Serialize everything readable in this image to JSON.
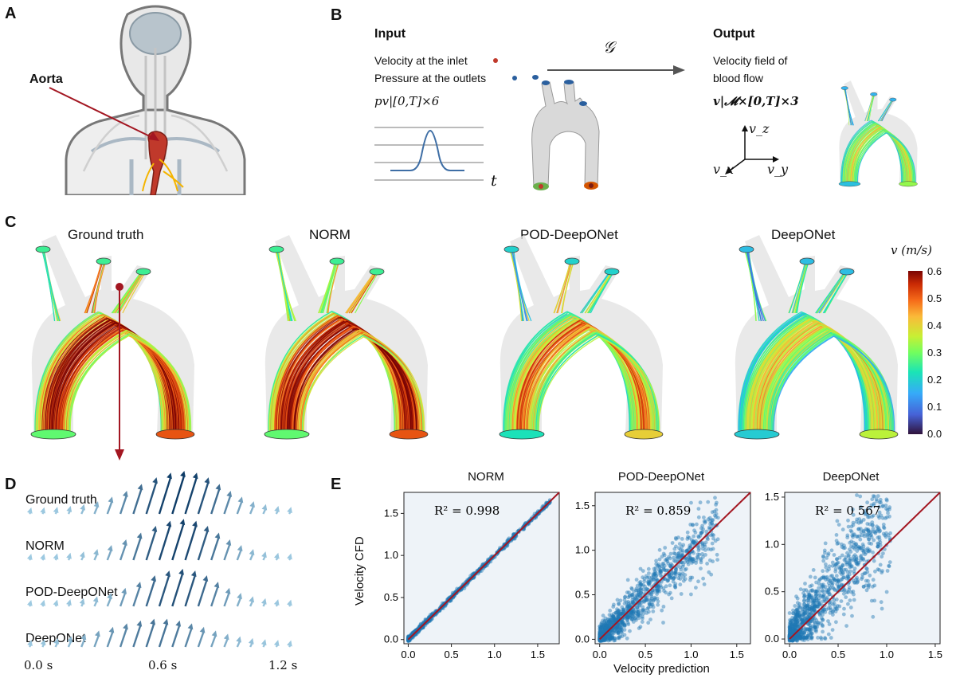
{
  "panels": {
    "A": "A",
    "B": "B",
    "C": "C",
    "D": "D",
    "E": "E"
  },
  "panelA": {
    "aorta_label": "Aorta"
  },
  "panelB": {
    "input_title": "Input",
    "output_title": "Output",
    "operator": "𝒢",
    "inlet_text": "Velocity at the inlet",
    "outlet_text": "Pressure at the outlets",
    "input_math": "pv|[0,T]×6",
    "t_label": "t",
    "output_text_1": "Velocity field of",
    "output_text_2": "blood flow",
    "output_math": "v|𝓜×[0,T]×3",
    "vz": "v_z",
    "vx": "v_x",
    "vy": "v_y"
  },
  "panelC": {
    "titles": [
      "Ground truth",
      "NORM",
      "POD-DeepONet",
      "DeepONet"
    ],
    "colorbar_title": "v (m/s)",
    "colorbar_ticks": [
      "0.6",
      "0.5",
      "0.4",
      "0.3",
      "0.2",
      "0.1",
      "0.0"
    ]
  },
  "panelD": {
    "rows": [
      "Ground truth",
      "NORM",
      "POD-DeepONet",
      "DeepONet"
    ],
    "time_ticks": [
      "0.0 s",
      "0.6 s",
      "1.2 s"
    ]
  },
  "panelE": {
    "ylabel": "Velocity CFD",
    "xlabel": "Velocity prediction"
  },
  "colors": {
    "accent_red": "#a31621",
    "scatter_blue": "#1f77b4",
    "arrow_dark": "#0d3b66",
    "arrow_light": "#9ecae1"
  },
  "chart_data": [
    {
      "type": "scatter",
      "title": "NORM",
      "annotation": "R² = 0.998",
      "xlabel": "",
      "ylabel": "Velocity CFD",
      "xlim": [
        -0.05,
        1.75
      ],
      "ylim": [
        -0.05,
        1.75
      ],
      "x_ticks": [
        "0.0",
        "0.5",
        "1.0",
        "1.5"
      ],
      "y_ticks": [
        "0.0",
        "0.5",
        "1.0",
        "1.5"
      ],
      "r2": 0.998,
      "noise": 0.015
    },
    {
      "type": "scatter",
      "title": "POD-DeepONet",
      "annotation": "R² = 0.859",
      "xlabel": "Velocity prediction",
      "ylabel": "",
      "xlim": [
        -0.05,
        1.65
      ],
      "ylim": [
        -0.05,
        1.65
      ],
      "x_ticks": [
        "0.0",
        "0.5",
        "1.0",
        "1.5"
      ],
      "y_ticks": [
        "0.0",
        "0.5",
        "1.0",
        "1.5"
      ],
      "r2": 0.859,
      "noise": 0.17
    },
    {
      "type": "scatter",
      "title": "DeepONet",
      "annotation": "R² = 0 567",
      "xlabel": "",
      "ylabel": "",
      "xlim": [
        -0.05,
        1.55
      ],
      "ylim": [
        -0.05,
        1.55
      ],
      "x_ticks": [
        "0.0",
        "0.5",
        "1.0",
        "1.5"
      ],
      "y_ticks": [
        "0.0",
        "0.5",
        "1.0",
        "1.5"
      ],
      "r2": 0.567,
      "noise": 0.28
    }
  ]
}
